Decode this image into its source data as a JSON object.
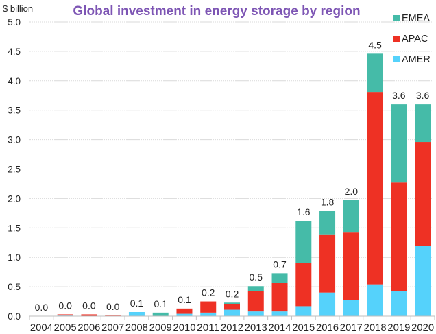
{
  "chart_data": {
    "type": "bar",
    "stacked": true,
    "title": "Global investment in energy storage by region",
    "ylabel": "$ billion",
    "xlabel": "",
    "ylim": [
      0,
      5.0
    ],
    "yticks": [
      "0.0",
      "0.5",
      "1.0",
      "1.5",
      "2.0",
      "2.5",
      "3.0",
      "3.5",
      "4.0",
      "4.5",
      "5.0"
    ],
    "ytick_values": [
      0,
      0.5,
      1.0,
      1.5,
      2.0,
      2.5,
      3.0,
      3.5,
      4.0,
      4.5,
      5.0
    ],
    "grid": "horizontal-dashed",
    "legend_position": "top-right",
    "categories": [
      "2004",
      "2005",
      "2006",
      "2007",
      "2008",
      "2009",
      "2010",
      "2011",
      "2012",
      "2013",
      "2014",
      "2015",
      "2016",
      "2017",
      "2018",
      "2019",
      "2020"
    ],
    "series": [
      {
        "name": "AMER",
        "color": "#55D2FB",
        "values": [
          0.0,
          0.01,
          0.0,
          0.0,
          0.07,
          0.0,
          0.04,
          0.06,
          0.11,
          0.08,
          0.08,
          0.17,
          0.4,
          0.27,
          0.54,
          0.43,
          1.19
        ]
      },
      {
        "name": "APAC",
        "color": "#EE3124",
        "values": [
          0.0,
          0.02,
          0.03,
          0.01,
          0.0,
          0.0,
          0.09,
          0.19,
          0.1,
          0.34,
          0.48,
          0.73,
          0.99,
          1.15,
          3.27,
          1.84,
          1.77
        ]
      },
      {
        "name": "EMEA",
        "color": "#45BBA8",
        "values": [
          0.0,
          0.0,
          0.0,
          0.0,
          0.0,
          0.06,
          0.0,
          0.0,
          0.02,
          0.09,
          0.17,
          0.72,
          0.4,
          0.55,
          0.65,
          1.33,
          0.64
        ]
      }
    ],
    "totals_labels": [
      "0.0",
      "0.0",
      "0.0",
      "0.0",
      "0.1",
      "0.1",
      "0.1",
      "0.2",
      "0.2",
      "0.5",
      "0.7",
      "1.6",
      "1.8",
      "2.0",
      "4.5",
      "3.6",
      "3.6"
    ],
    "legend": [
      {
        "name": "EMEA",
        "color": "#45BBA8"
      },
      {
        "name": "APAC",
        "color": "#EE3124"
      },
      {
        "name": "AMER",
        "color": "#55D2FB"
      }
    ],
    "title_color": "#7D55B4"
  }
}
